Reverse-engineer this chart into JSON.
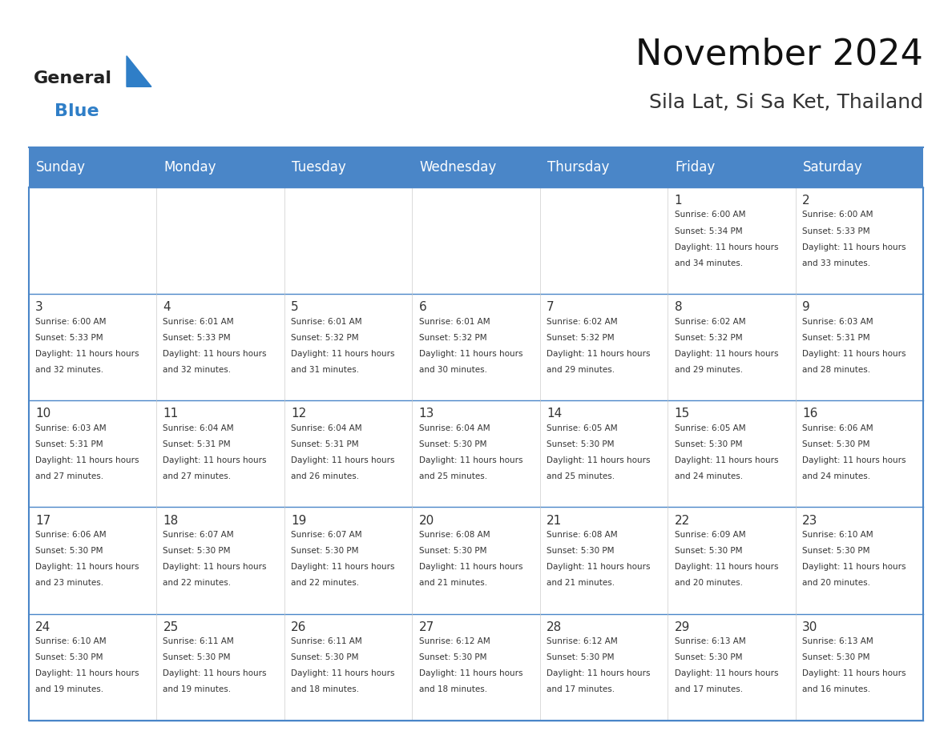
{
  "title": "November 2024",
  "subtitle": "Sila Lat, Si Sa Ket, Thailand",
  "days_of_week": [
    "Sunday",
    "Monday",
    "Tuesday",
    "Wednesday",
    "Thursday",
    "Friday",
    "Saturday"
  ],
  "header_bg_color": "#4a86c8",
  "header_text_color": "#ffffff",
  "grid_color": "#4a86c8",
  "day_num_color": "#333333",
  "text_color": "#333333",
  "title_color": "#111111",
  "subtitle_color": "#333333",
  "logo_general_color": "#222222",
  "logo_blue_color": "#2f7ec7",
  "calendar": [
    [
      {
        "day": "",
        "sunrise": "",
        "sunset": "",
        "daylight": ""
      },
      {
        "day": "",
        "sunrise": "",
        "sunset": "",
        "daylight": ""
      },
      {
        "day": "",
        "sunrise": "",
        "sunset": "",
        "daylight": ""
      },
      {
        "day": "",
        "sunrise": "",
        "sunset": "",
        "daylight": ""
      },
      {
        "day": "",
        "sunrise": "",
        "sunset": "",
        "daylight": ""
      },
      {
        "day": "1",
        "sunrise": "6:00 AM",
        "sunset": "5:34 PM",
        "daylight": "11 hours and 34 minutes."
      },
      {
        "day": "2",
        "sunrise": "6:00 AM",
        "sunset": "5:33 PM",
        "daylight": "11 hours and 33 minutes."
      }
    ],
    [
      {
        "day": "3",
        "sunrise": "6:00 AM",
        "sunset": "5:33 PM",
        "daylight": "11 hours and 32 minutes."
      },
      {
        "day": "4",
        "sunrise": "6:01 AM",
        "sunset": "5:33 PM",
        "daylight": "11 hours and 32 minutes."
      },
      {
        "day": "5",
        "sunrise": "6:01 AM",
        "sunset": "5:32 PM",
        "daylight": "11 hours and 31 minutes."
      },
      {
        "day": "6",
        "sunrise": "6:01 AM",
        "sunset": "5:32 PM",
        "daylight": "11 hours and 30 minutes."
      },
      {
        "day": "7",
        "sunrise": "6:02 AM",
        "sunset": "5:32 PM",
        "daylight": "11 hours and 29 minutes."
      },
      {
        "day": "8",
        "sunrise": "6:02 AM",
        "sunset": "5:32 PM",
        "daylight": "11 hours and 29 minutes."
      },
      {
        "day": "9",
        "sunrise": "6:03 AM",
        "sunset": "5:31 PM",
        "daylight": "11 hours and 28 minutes."
      }
    ],
    [
      {
        "day": "10",
        "sunrise": "6:03 AM",
        "sunset": "5:31 PM",
        "daylight": "11 hours and 27 minutes."
      },
      {
        "day": "11",
        "sunrise": "6:04 AM",
        "sunset": "5:31 PM",
        "daylight": "11 hours and 27 minutes."
      },
      {
        "day": "12",
        "sunrise": "6:04 AM",
        "sunset": "5:31 PM",
        "daylight": "11 hours and 26 minutes."
      },
      {
        "day": "13",
        "sunrise": "6:04 AM",
        "sunset": "5:30 PM",
        "daylight": "11 hours and 25 minutes."
      },
      {
        "day": "14",
        "sunrise": "6:05 AM",
        "sunset": "5:30 PM",
        "daylight": "11 hours and 25 minutes."
      },
      {
        "day": "15",
        "sunrise": "6:05 AM",
        "sunset": "5:30 PM",
        "daylight": "11 hours and 24 minutes."
      },
      {
        "day": "16",
        "sunrise": "6:06 AM",
        "sunset": "5:30 PM",
        "daylight": "11 hours and 24 minutes."
      }
    ],
    [
      {
        "day": "17",
        "sunrise": "6:06 AM",
        "sunset": "5:30 PM",
        "daylight": "11 hours and 23 minutes."
      },
      {
        "day": "18",
        "sunrise": "6:07 AM",
        "sunset": "5:30 PM",
        "daylight": "11 hours and 22 minutes."
      },
      {
        "day": "19",
        "sunrise": "6:07 AM",
        "sunset": "5:30 PM",
        "daylight": "11 hours and 22 minutes."
      },
      {
        "day": "20",
        "sunrise": "6:08 AM",
        "sunset": "5:30 PM",
        "daylight": "11 hours and 21 minutes."
      },
      {
        "day": "21",
        "sunrise": "6:08 AM",
        "sunset": "5:30 PM",
        "daylight": "11 hours and 21 minutes."
      },
      {
        "day": "22",
        "sunrise": "6:09 AM",
        "sunset": "5:30 PM",
        "daylight": "11 hours and 20 minutes."
      },
      {
        "day": "23",
        "sunrise": "6:10 AM",
        "sunset": "5:30 PM",
        "daylight": "11 hours and 20 minutes."
      }
    ],
    [
      {
        "day": "24",
        "sunrise": "6:10 AM",
        "sunset": "5:30 PM",
        "daylight": "11 hours and 19 minutes."
      },
      {
        "day": "25",
        "sunrise": "6:11 AM",
        "sunset": "5:30 PM",
        "daylight": "11 hours and 19 minutes."
      },
      {
        "day": "26",
        "sunrise": "6:11 AM",
        "sunset": "5:30 PM",
        "daylight": "11 hours and 18 minutes."
      },
      {
        "day": "27",
        "sunrise": "6:12 AM",
        "sunset": "5:30 PM",
        "daylight": "11 hours and 18 minutes."
      },
      {
        "day": "28",
        "sunrise": "6:12 AM",
        "sunset": "5:30 PM",
        "daylight": "11 hours and 17 minutes."
      },
      {
        "day": "29",
        "sunrise": "6:13 AM",
        "sunset": "5:30 PM",
        "daylight": "11 hours and 17 minutes."
      },
      {
        "day": "30",
        "sunrise": "6:13 AM",
        "sunset": "5:30 PM",
        "daylight": "11 hours and 16 minutes."
      }
    ]
  ]
}
